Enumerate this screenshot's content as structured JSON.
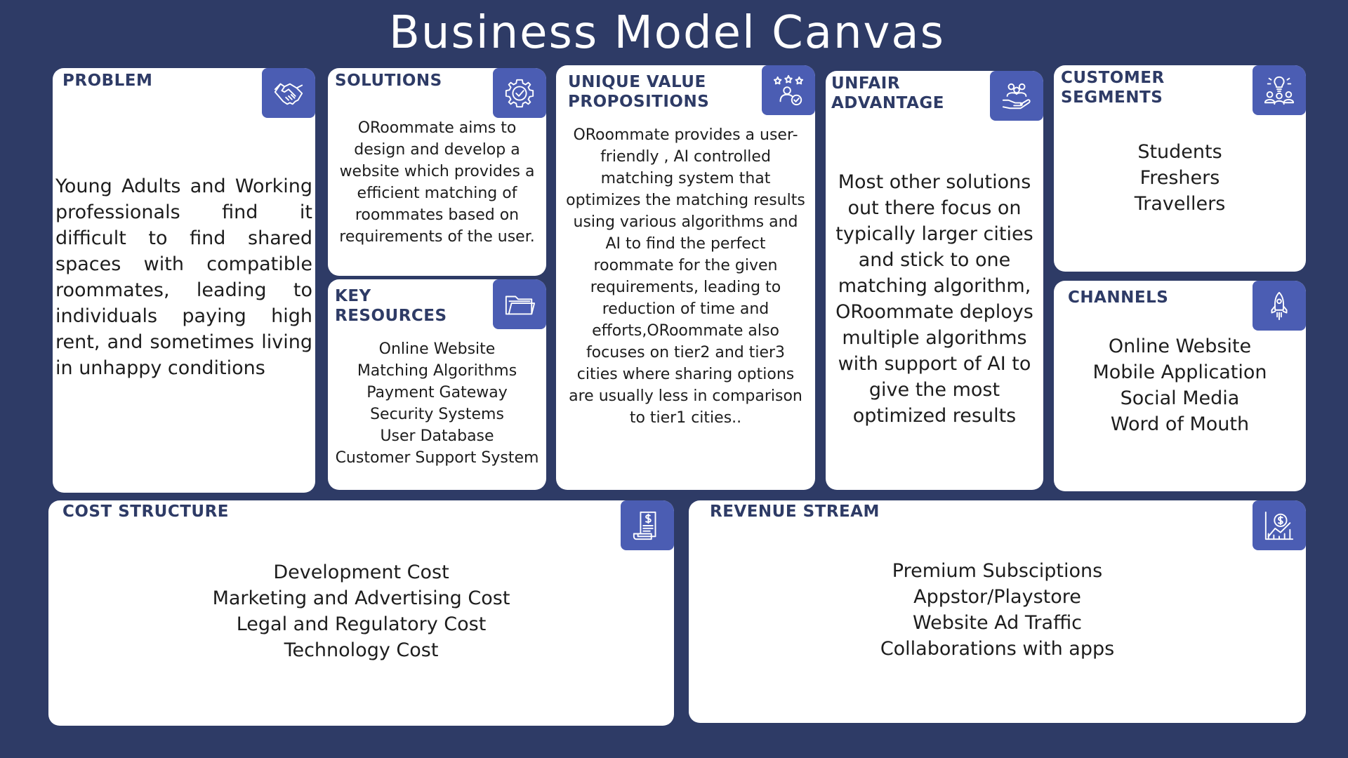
{
  "title": "Business Model Canvas",
  "colors": {
    "background": "#2e3b66",
    "heading": "#2e3b66",
    "icon_bg": "#4b5db3",
    "card": "#ffffff"
  },
  "problem": {
    "heading": "PROBLEM",
    "icon": "handshake-icon",
    "text": "Young Adults and Working professionals find it difficult to find shared spaces with compatible roommates, leading to individuals paying high rent, and sometimes living in unhappy conditions"
  },
  "solutions": {
    "heading": "SOLUTIONS",
    "icon": "gear-check-icon",
    "text": "ORoommate aims to\ndesign and develop a\nwebsite which provides a\nefficient matching of\nroommates based on\nrequirements of the user."
  },
  "key_resources": {
    "heading": "KEY\nRESOURCES",
    "icon": "folder-icon",
    "text": "Online Website\nMatching Algorithms\nPayment Gateway\nSecurity Systems\nUser Database\nCustomer Support System"
  },
  "unique_value": {
    "heading": "UNIQUE VALUE\nPROPOSITIONS",
    "icon": "user-rating-icon",
    "text": "ORoommate provides a user-\nfriendly , AI controlled\nmatching system that\noptimizes the matching results\nusing various algorithms and\nAI to find the perfect\nroommate for the given\nrequirements, leading to\nreduction of time and\nefforts,ORoommate also\nfocuses on tier2 and tier3\ncities where sharing options\nare usually less in comparison\nto tier1 cities.."
  },
  "unfair_advantage": {
    "heading": "UNFAIR\nADVANTAGE",
    "icon": "group-hand-icon",
    "text": "Most other solutions\nout there focus on\ntypically larger cities\nand stick to one\nmatching algorithm,\nORoommate deploys\nmultiple algorithms\nwith support of AI to\ngive the most\noptimized results"
  },
  "customer_segments": {
    "heading": "CUSTOMER\nSEGMENTS",
    "icon": "people-idea-icon",
    "text": "Students\nFreshers\nTravellers"
  },
  "channels": {
    "heading": "CHANNELS",
    "icon": "rocket-icon",
    "text": "Online Website\nMobile Application\nSocial Media\nWord of Mouth"
  },
  "cost_structure": {
    "heading": "COST STRUCTURE",
    "icon": "invoice-icon",
    "text": "Development Cost\nMarketing and Advertising Cost\nLegal and Regulatory Cost\nTechnology Cost"
  },
  "revenue_stream": {
    "heading": "REVENUE STREAM",
    "icon": "revenue-chart-icon",
    "text": "Premium Subsciptions\nAppstor/Playstore\nWebsite Ad Traffic\nCollaborations with apps"
  }
}
